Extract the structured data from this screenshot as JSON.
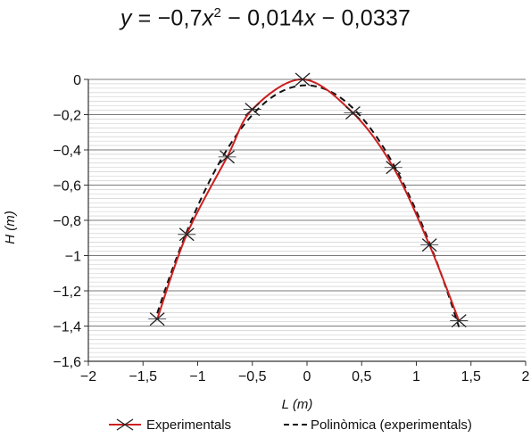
{
  "equation": {
    "lhs": "y",
    "eq": " = −0,7",
    "x1": "x",
    "sup": "2",
    "mid": " − 0,014",
    "x2": "x",
    "rest": " − 0,0337"
  },
  "chart_data": {
    "type": "scatter",
    "title": "",
    "xlabel": "L (m)",
    "ylabel": "H (m)",
    "xlim": [
      -2,
      2
    ],
    "ylim": [
      -1.6,
      0
    ],
    "x_ticks": [
      -2,
      -1.5,
      -1,
      -0.5,
      0,
      0.5,
      1,
      1.5,
      2
    ],
    "x_tick_labels": [
      "−2",
      "−1,5",
      "−1",
      "−0,5",
      "0",
      "0,5",
      "1",
      "1,5",
      "2"
    ],
    "y_ticks": [
      0,
      -0.2,
      -0.4,
      -0.6,
      -0.8,
      -1,
      -1.2,
      -1.4,
      -1.6
    ],
    "y_tick_labels": [
      "0",
      "−0,2",
      "−0,4",
      "−0,6",
      "−0,8",
      "−1",
      "−1,2",
      "−1,4",
      "−1,6"
    ],
    "grid": true,
    "legend_position": "bottom",
    "series": [
      {
        "name": "Experimentals",
        "style": "line-markers",
        "color": "#cc1f1f",
        "marker": "x",
        "x": [
          -1.37,
          -1.1,
          -0.73,
          -0.5,
          -0.04,
          0.42,
          0.79,
          1.12,
          1.39
        ],
        "y": [
          -1.36,
          -0.88,
          -0.44,
          -0.17,
          0.0,
          -0.19,
          -0.5,
          -0.94,
          -1.37
        ]
      },
      {
        "name": "Polinòmica (experimentals)",
        "style": "dashed",
        "color": "#111111",
        "fit": {
          "a": -0.7,
          "b": -0.014,
          "c": -0.0337
        },
        "x_range": [
          -1.37,
          1.39
        ]
      }
    ]
  }
}
